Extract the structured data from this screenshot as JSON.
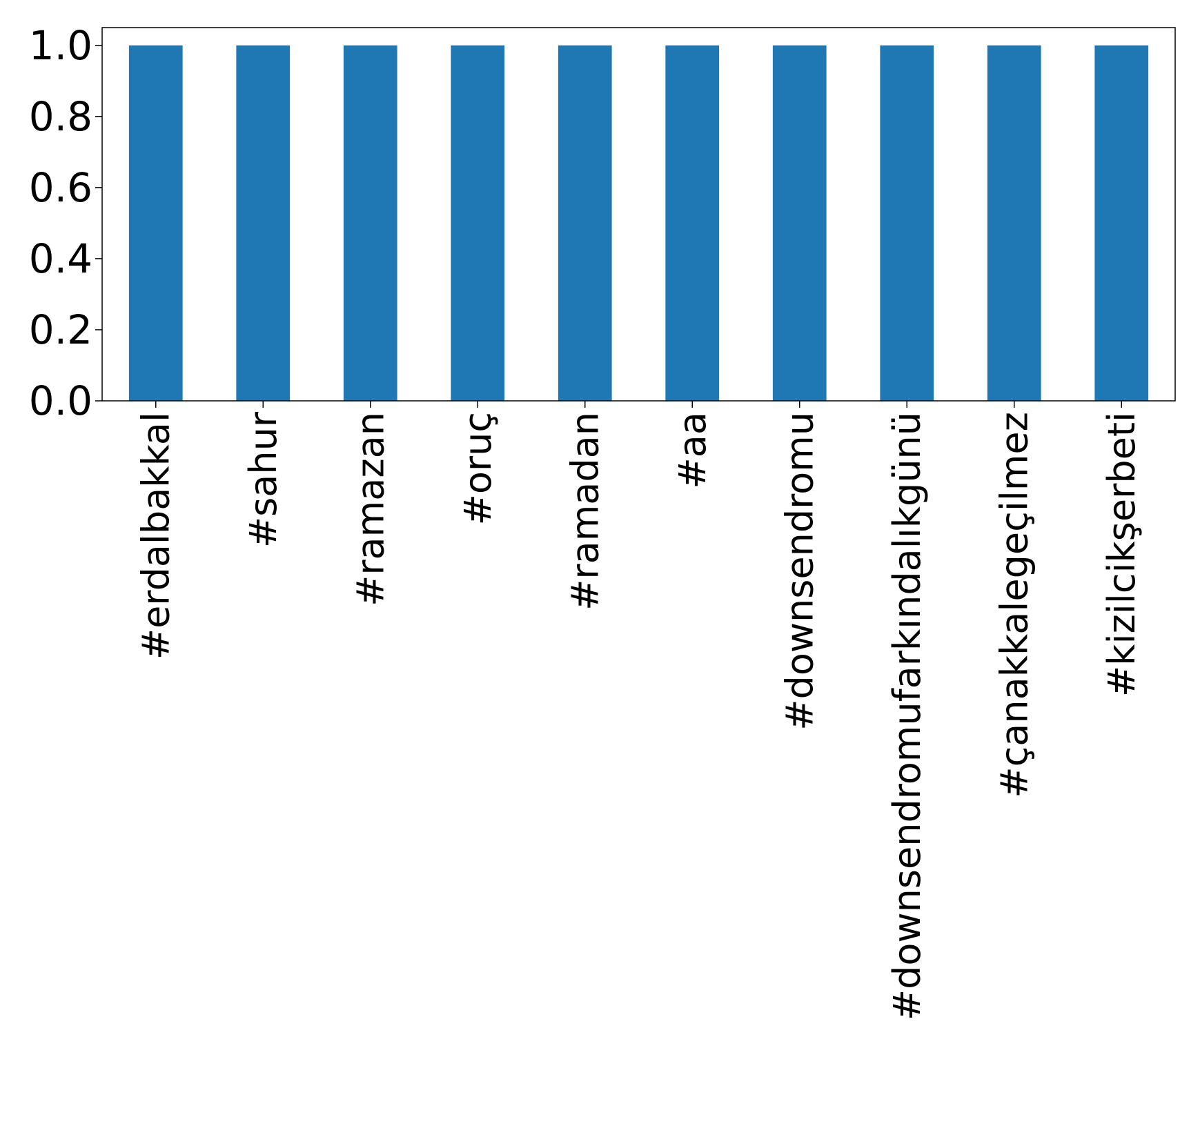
{
  "chart_data": {
    "type": "bar",
    "categories": [
      "#erdalbakkal",
      "#sahur",
      "#ramazan",
      "#oruç",
      "#ramadan",
      "#aa",
      "#downsendromu",
      "#downsendromufarkındalıkgünü",
      "#çanakkalegeçilmez",
      "#kizilcikşerbeti"
    ],
    "values": [
      1,
      1,
      1,
      1,
      1,
      1,
      1,
      1,
      1,
      1
    ],
    "ylim": [
      0,
      1.05
    ],
    "yticks": [
      "0.0",
      "0.2",
      "0.4",
      "0.6",
      "0.8",
      "1.0"
    ],
    "title": "",
    "xlabel": "",
    "ylabel": "",
    "grid": false,
    "bar_color": "#1f77b4"
  }
}
